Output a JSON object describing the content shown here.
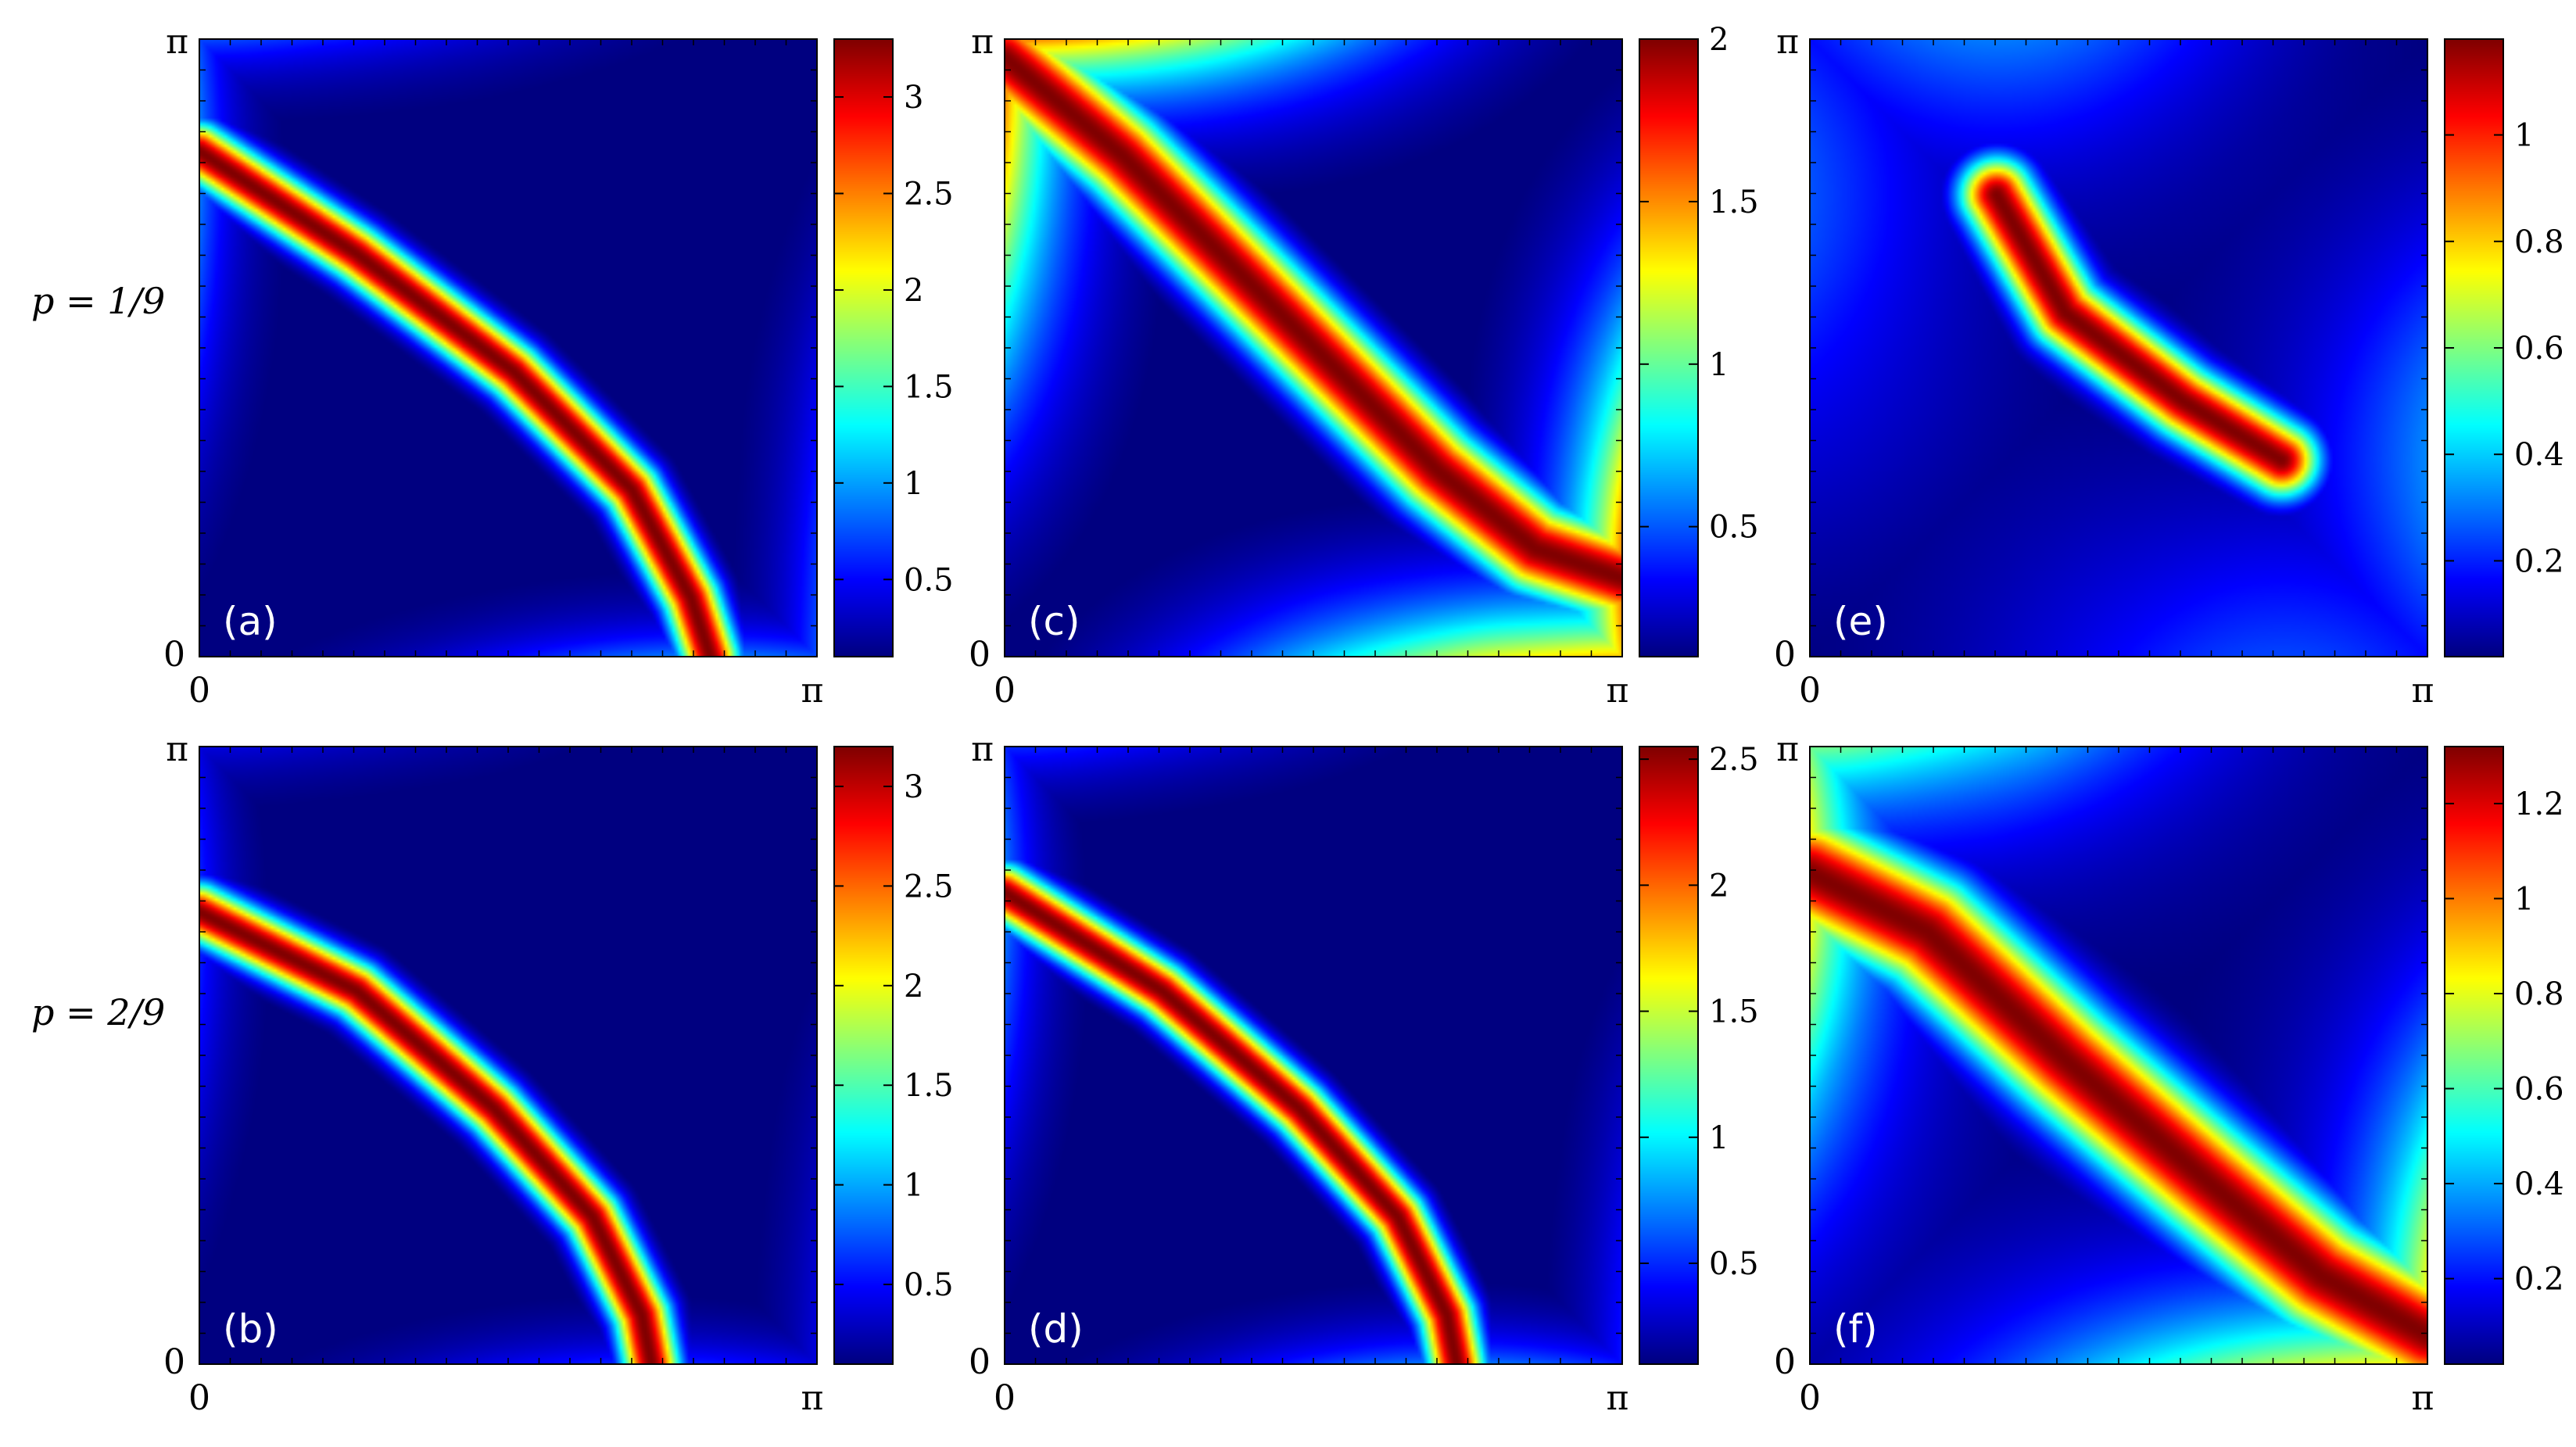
{
  "figure": {
    "row_labels": [
      "p = 1/9",
      "p = 2/9"
    ]
  },
  "chart_data": [
    {
      "type": "heatmap",
      "panel_label": "(a)",
      "xlim": [
        0,
        3.14159
      ],
      "ylim": [
        0,
        3.14159
      ],
      "x_tick_labels": [
        "0",
        "π"
      ],
      "y_tick_labels": [
        "0",
        "π"
      ],
      "colorbar": {
        "range": [
          0.1,
          3.3
        ],
        "ticks": [
          0.5,
          1,
          1.5,
          2,
          2.5,
          3
        ],
        "tick_labels": [
          "0.5",
          "1",
          "1.5",
          "2",
          "2.5",
          "3"
        ],
        "colormap": "jet"
      },
      "ridge": {
        "points": [
          [
            0,
            2.57
          ],
          [
            0.8,
            2.05
          ],
          [
            1.6,
            1.45
          ],
          [
            2.2,
            0.85
          ],
          [
            2.5,
            0.3
          ],
          [
            2.6,
            0
          ]
        ],
        "width": 0.1,
        "peak": 3.3,
        "edge_value": 0.9,
        "edge_decay": 0.2
      }
    },
    {
      "type": "heatmap",
      "panel_label": "(b)",
      "xlim": [
        0,
        3.14159
      ],
      "ylim": [
        0,
        3.14159
      ],
      "x_tick_labels": [
        "0",
        "π"
      ],
      "y_tick_labels": [
        "0",
        "π"
      ],
      "colorbar": {
        "range": [
          0.1,
          3.2
        ],
        "ticks": [
          0.5,
          1,
          1.5,
          2,
          2.5,
          3
        ],
        "tick_labels": [
          "0.5",
          "1",
          "1.5",
          "2",
          "2.5",
          "3"
        ],
        "colormap": "jet"
      },
      "ridge": {
        "points": [
          [
            0,
            2.3
          ],
          [
            0.8,
            1.9
          ],
          [
            1.5,
            1.3
          ],
          [
            2.0,
            0.75
          ],
          [
            2.25,
            0.25
          ],
          [
            2.3,
            0
          ]
        ],
        "width": 0.1,
        "peak": 3.2,
        "edge_value": 0.6,
        "edge_decay": 0.2
      }
    },
    {
      "type": "heatmap",
      "panel_label": "(c)",
      "xlim": [
        0,
        3.14159
      ],
      "ylim": [
        0,
        3.14159
      ],
      "x_tick_labels": [
        "0",
        "π"
      ],
      "y_tick_labels": [
        "0",
        "π"
      ],
      "colorbar": {
        "range": [
          0.1,
          2.0
        ],
        "ticks": [
          0.5,
          1,
          1.5,
          2
        ],
        "tick_labels": [
          "0.5",
          "1",
          "1.5",
          "2"
        ],
        "colormap": "jet"
      },
      "ridge": {
        "points": [
          [
            0,
            3.05
          ],
          [
            0.6,
            2.55
          ],
          [
            1.4,
            1.75
          ],
          [
            2.2,
            0.95
          ],
          [
            2.7,
            0.55
          ],
          [
            3.14,
            0.4
          ]
        ],
        "width": 0.16,
        "peak": 2.0,
        "edge_value": 1.55,
        "edge_decay": 0.3
      }
    },
    {
      "type": "heatmap",
      "panel_label": "(d)",
      "xlim": [
        0,
        3.14159
      ],
      "ylim": [
        0,
        3.14159
      ],
      "x_tick_labels": [
        "0",
        "π"
      ],
      "y_tick_labels": [
        "0",
        "π"
      ],
      "colorbar": {
        "range": [
          0.1,
          2.55
        ],
        "ticks": [
          0.5,
          1,
          1.5,
          2,
          2.5
        ],
        "tick_labels": [
          "0.5",
          "1",
          "1.5",
          "2",
          "2.5"
        ],
        "colormap": "jet"
      },
      "ridge": {
        "points": [
          [
            0,
            2.4
          ],
          [
            0.8,
            1.9
          ],
          [
            1.5,
            1.3
          ],
          [
            2.0,
            0.75
          ],
          [
            2.25,
            0.25
          ],
          [
            2.3,
            0
          ]
        ],
        "width": 0.1,
        "peak": 2.55,
        "edge_value": 0.7,
        "edge_decay": 0.22
      }
    },
    {
      "type": "heatmap",
      "panel_label": "(e)",
      "xlim": [
        0,
        3.14159
      ],
      "ylim": [
        0,
        3.14159
      ],
      "x_tick_labels": [
        "0",
        "π"
      ],
      "y_tick_labels": [
        "0",
        "π"
      ],
      "colorbar": {
        "range": [
          0.02,
          1.18
        ],
        "ticks": [
          0.2,
          0.4,
          0.6,
          0.8,
          1
        ],
        "tick_labels": [
          "0.2",
          "0.4",
          "0.6",
          "0.8",
          "1"
        ],
        "colormap": "jet"
      },
      "ridge": {
        "points": [
          [
            0.95,
            2.35
          ],
          [
            1.3,
            1.75
          ],
          [
            1.9,
            1.3
          ],
          [
            2.4,
            1.0
          ]
        ],
        "width": 0.13,
        "peak": 1.18,
        "edge_value": 0.45,
        "edge_decay": 0.5
      }
    },
    {
      "type": "heatmap",
      "panel_label": "(f)",
      "xlim": [
        0,
        3.14159
      ],
      "ylim": [
        0,
        3.14159
      ],
      "x_tick_labels": [
        "0",
        "π"
      ],
      "y_tick_labels": [
        "0",
        "π"
      ],
      "colorbar": {
        "range": [
          0.02,
          1.32
        ],
        "ticks": [
          0.2,
          0.4,
          0.6,
          0.8,
          1,
          1.2
        ],
        "tick_labels": [
          "0.2",
          "0.4",
          "0.6",
          "0.8",
          "1",
          "1.2"
        ],
        "colormap": "jet"
      },
      "ridge": {
        "points": [
          [
            0,
            2.5
          ],
          [
            0.6,
            2.2
          ],
          [
            1.3,
            1.55
          ],
          [
            2.0,
            0.95
          ],
          [
            2.6,
            0.45
          ],
          [
            3.14,
            0.15
          ]
        ],
        "width": 0.2,
        "peak": 1.32,
        "edge_value": 0.85,
        "edge_decay": 0.35
      }
    }
  ]
}
